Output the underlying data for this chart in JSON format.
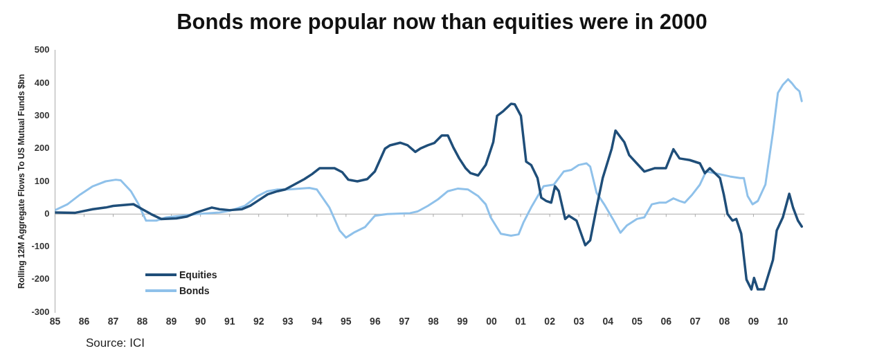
{
  "chart_data": {
    "type": "line",
    "title": "Bonds more popular now than equities were in 2000",
    "ylabel": "Rolling 12M Aggregate Flows To US Mutual Funds $bn",
    "annotations": [
      "Source: ICI"
    ],
    "xlim": [
      1985,
      2010.75
    ],
    "xticks": [
      {
        "value": 1985,
        "label": "85"
      },
      {
        "value": 1986,
        "label": "86"
      },
      {
        "value": 1987,
        "label": "87"
      },
      {
        "value": 1988,
        "label": "88"
      },
      {
        "value": 1989,
        "label": "89"
      },
      {
        "value": 1990,
        "label": "90"
      },
      {
        "value": 1991,
        "label": "91"
      },
      {
        "value": 1992,
        "label": "92"
      },
      {
        "value": 1993,
        "label": "93"
      },
      {
        "value": 1994,
        "label": "94"
      },
      {
        "value": 1995,
        "label": "95"
      },
      {
        "value": 1996,
        "label": "96"
      },
      {
        "value": 1997,
        "label": "97"
      },
      {
        "value": 1998,
        "label": "98"
      },
      {
        "value": 1999,
        "label": "99"
      },
      {
        "value": 2000,
        "label": "00"
      },
      {
        "value": 2001,
        "label": "01"
      },
      {
        "value": 2002,
        "label": "02"
      },
      {
        "value": 2003,
        "label": "03"
      },
      {
        "value": 2004,
        "label": "04"
      },
      {
        "value": 2005,
        "label": "05"
      },
      {
        "value": 2006,
        "label": "06"
      },
      {
        "value": 2007,
        "label": "07"
      },
      {
        "value": 2008,
        "label": "08"
      },
      {
        "value": 2009,
        "label": "09"
      },
      {
        "value": 2010,
        "label": "10"
      }
    ],
    "ylim": [
      -300,
      500
    ],
    "yticks": [
      -300,
      -200,
      -100,
      0,
      100,
      200,
      300,
      400,
      500
    ],
    "grid": false,
    "ref_lines": [
      {
        "axis": "y",
        "value": 0,
        "color": "#aaaaaa",
        "line_style": "solid"
      }
    ],
    "legend": "bottom left",
    "marker": "none",
    "line_style": "solid",
    "series": [
      {
        "name": "Equities",
        "color": "#1f4e79",
        "x": [
          1985.0,
          1985.7,
          1986.3,
          1986.74,
          1987.0,
          1987.7,
          1988.0,
          1988.3,
          1988.65,
          1989.17,
          1989.52,
          1989.87,
          1990.22,
          1990.39,
          1990.65,
          1991.0,
          1991.43,
          1991.7,
          1991.96,
          1992.3,
          1992.65,
          1992.91,
          1993.57,
          1993.83,
          1994.09,
          1994.61,
          1994.87,
          1995.08,
          1995.39,
          1995.73,
          1995.99,
          1996.34,
          1996.51,
          1996.86,
          1997.12,
          1997.38,
          1997.55,
          1997.81,
          1998.03,
          1998.29,
          1998.5,
          1998.68,
          1998.89,
          1999.11,
          1999.28,
          1999.54,
          1999.8,
          2000.06,
          2000.19,
          2000.41,
          2000.67,
          2000.8,
          2001.01,
          2001.19,
          2001.36,
          2001.58,
          2001.71,
          2001.88,
          2002.05,
          2002.18,
          2002.31,
          2002.53,
          2002.66,
          2002.92,
          2003.22,
          2003.39,
          2003.61,
          2003.82,
          2004.13,
          2004.26,
          2004.56,
          2004.73,
          2004.99,
          2005.25,
          2005.6,
          2005.99,
          2006.25,
          2006.46,
          2006.81,
          2007.16,
          2007.33,
          2007.5,
          2007.85,
          2007.98,
          2008.11,
          2008.28,
          2008.41,
          2008.58,
          2008.76,
          2008.93,
          2009.02,
          2009.15,
          2009.36,
          2009.67,
          2009.8,
          2010.01,
          2010.23,
          2010.36,
          2010.53,
          2010.66
        ],
        "values": [
          5,
          4,
          15,
          20,
          25,
          30,
          15,
          0,
          -15,
          -13,
          -8,
          5,
          15,
          20,
          15,
          12,
          15,
          25,
          40,
          60,
          70,
          75,
          107,
          122,
          140,
          140,
          128,
          105,
          100,
          107,
          130,
          200,
          210,
          218,
          210,
          190,
          200,
          210,
          217,
          240,
          240,
          205,
          170,
          140,
          125,
          118,
          150,
          220,
          300,
          315,
          337,
          335,
          300,
          160,
          150,
          110,
          50,
          40,
          35,
          85,
          70,
          -15,
          -5,
          -20,
          -95,
          -80,
          20,
          110,
          200,
          255,
          220,
          180,
          155,
          130,
          140,
          140,
          198,
          170,
          165,
          155,
          125,
          140,
          110,
          60,
          0,
          -20,
          -15,
          -60,
          -200,
          -230,
          -195,
          -230,
          -230,
          -140,
          -50,
          -10,
          62,
          20,
          -20,
          -38
        ]
      },
      {
        "name": "Bonds",
        "color": "#8fc1ea",
        "x": [
          1985.0,
          1985.43,
          1985.87,
          1986.3,
          1986.74,
          1987.09,
          1987.26,
          1987.61,
          1987.87,
          1988.13,
          1988.48,
          1988.83,
          1989.35,
          1989.87,
          1990.65,
          1991.0,
          1991.52,
          1991.96,
          1992.3,
          1992.65,
          1993.0,
          1993.74,
          1994.0,
          1994.43,
          1994.78,
          1995.0,
          1995.3,
          1995.65,
          1995.99,
          1996.42,
          1997.2,
          1997.46,
          1997.81,
          1998.16,
          1998.5,
          1998.85,
          1999.19,
          1999.54,
          1999.8,
          1999.97,
          2000.32,
          2000.67,
          2000.93,
          2001.1,
          2001.36,
          2001.62,
          2001.79,
          2002.14,
          2002.48,
          2002.74,
          2003.0,
          2003.26,
          2003.39,
          2003.61,
          2003.87,
          2004.17,
          2004.43,
          2004.65,
          2004.99,
          2005.25,
          2005.51,
          2005.77,
          2005.99,
          2006.25,
          2006.46,
          2006.64,
          2006.9,
          2007.16,
          2007.37,
          2007.68,
          2008.19,
          2008.54,
          2008.67,
          2008.8,
          2008.97,
          2009.15,
          2009.41,
          2009.67,
          2009.84,
          2010.01,
          2010.19,
          2010.32,
          2010.45,
          2010.58,
          2010.66
        ],
        "values": [
          12,
          30,
          60,
          85,
          100,
          105,
          103,
          70,
          30,
          -20,
          -20,
          -10,
          -5,
          0,
          5,
          10,
          25,
          55,
          70,
          75,
          75,
          80,
          75,
          20,
          -50,
          -72,
          -55,
          -40,
          -5,
          0,
          3,
          8,
          25,
          45,
          70,
          78,
          75,
          55,
          30,
          -10,
          -60,
          -66,
          -62,
          -25,
          20,
          60,
          85,
          90,
          130,
          135,
          150,
          155,
          145,
          65,
          30,
          -15,
          -57,
          -35,
          -15,
          -10,
          30,
          35,
          35,
          48,
          40,
          35,
          60,
          90,
          130,
          125,
          115,
          110,
          110,
          55,
          30,
          40,
          90,
          250,
          370,
          395,
          412,
          400,
          385,
          375,
          345
        ]
      }
    ]
  }
}
